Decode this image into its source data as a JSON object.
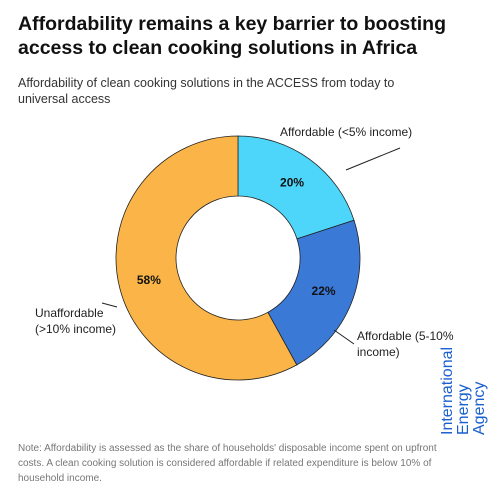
{
  "chart_data": {
    "type": "pie",
    "title": "Affordability remains a key barrier to boosting access to clean cooking solutions in Africa",
    "subtitle": "Affordability of clean cooking solutions in the ACCESS from today to universal access",
    "categories": [
      "Affordable (<5% income)",
      "Affordable (5-10% income)",
      "Unaffordable (>10% income)"
    ],
    "values": [
      20,
      22,
      58
    ],
    "value_labels": [
      "20%",
      "22%",
      "58%"
    ],
    "colors": [
      "#4dd6fa",
      "#3b79d6",
      "#fbb447"
    ],
    "donut": true,
    "note": "Note: Affordability is assessed as the share of households' disposable income spent on upfront costs. A clean cooking solution is considered affordable if related expenditure is below 10% of household income."
  },
  "logo": "International Energy Agency"
}
